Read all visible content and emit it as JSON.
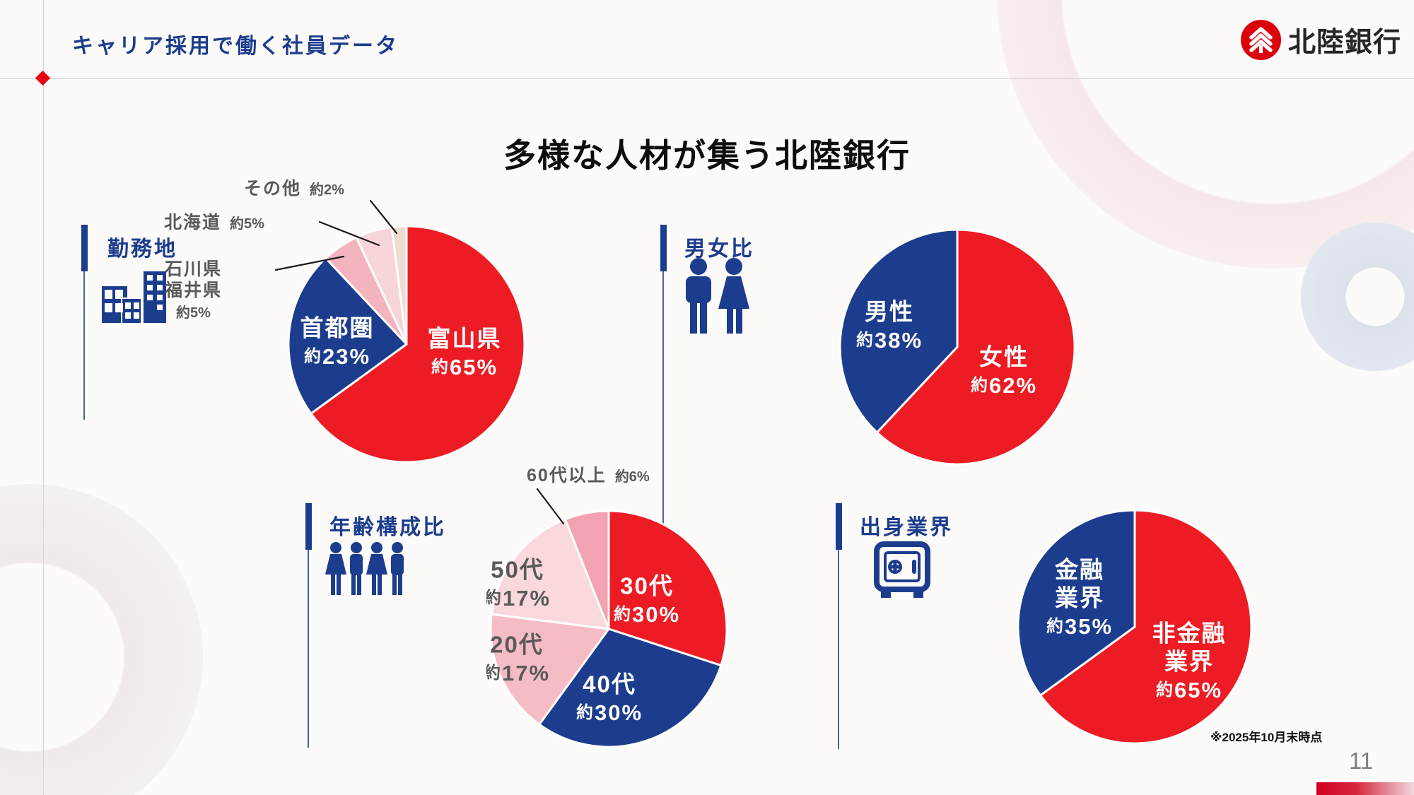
{
  "header": {
    "title": "キャリア採用で働く社員データ",
    "logo_text": "北陸銀行"
  },
  "main_title": "多様な人材が集う北陸銀行",
  "footnote": "※2025年10月末時点",
  "page_number": "11",
  "colors": {
    "brand_red": "#ed1c24",
    "brand_navy": "#1c3d8e",
    "logo_red": "#dc000c",
    "label_gray": "#5a5a5a",
    "pink_medium": "#f4b4be",
    "pink_light": "#f8d5d9",
    "pink_beige": "#efdcd2",
    "pink_dark": "#f2a2b0"
  },
  "chart_data": [
    {
      "id": "workplace",
      "type": "pie",
      "title": "勤務地",
      "icon": "buildings-icon",
      "slices": [
        {
          "label": "富山県",
          "value": 65,
          "value_label": "約65%",
          "color": "#ed1c24",
          "text_color": "#ffffff",
          "placement": "inside"
        },
        {
          "label": "首都圏",
          "value": 23,
          "value_label": "約23%",
          "color": "#1c3d8e",
          "text_color": "#ffffff",
          "placement": "inside"
        },
        {
          "label": "石川県福井県",
          "label_lines": [
            "石川県",
            "福井県"
          ],
          "value": 5,
          "value_label": "約5%",
          "color": "#f4b4be",
          "placement": "outside"
        },
        {
          "label": "北海道",
          "value": 5,
          "value_label": "約5%",
          "color": "#f8d5d9",
          "placement": "outside"
        },
        {
          "label": "その他",
          "value": 2,
          "value_label": "約2%",
          "color": "#efdcd2",
          "placement": "outside"
        }
      ]
    },
    {
      "id": "gender",
      "type": "pie",
      "title": "男女比",
      "icon": "couple-icon",
      "slices": [
        {
          "label": "女性",
          "value": 62,
          "value_label": "約62%",
          "color": "#ed1c24",
          "text_color": "#ffffff",
          "placement": "inside"
        },
        {
          "label": "男性",
          "value": 38,
          "value_label": "約38%",
          "color": "#1c3d8e",
          "text_color": "#ffffff",
          "placement": "inside"
        }
      ]
    },
    {
      "id": "age",
      "type": "pie",
      "title": "年齢構成比",
      "icon": "people-row-icon",
      "slices": [
        {
          "label": "30代",
          "value": 30,
          "value_label": "約30%",
          "color": "#ed1c24",
          "text_color": "#ffffff",
          "placement": "inside"
        },
        {
          "label": "40代",
          "value": 30,
          "value_label": "約30%",
          "color": "#1c3d8e",
          "text_color": "#ffffff",
          "placement": "inside"
        },
        {
          "label": "20代",
          "value": 17,
          "value_label": "約17%",
          "color": "#f6bcc5",
          "text_color": "#5a5a5a",
          "placement": "inside"
        },
        {
          "label": "50代",
          "value": 17,
          "value_label": "約17%",
          "color": "#f9d9dc",
          "text_color": "#5a5a5a",
          "placement": "inside"
        },
        {
          "label": "60代以上",
          "value": 6,
          "value_label": "約6%",
          "color": "#f2a2b0",
          "placement": "outside"
        }
      ]
    },
    {
      "id": "industry",
      "type": "pie",
      "title": "出身業界",
      "icon": "safe-icon",
      "slices": [
        {
          "label": "非金融業界",
          "label_lines": [
            "非金融",
            "業界"
          ],
          "value": 65,
          "value_label": "約65%",
          "color": "#ed1c24",
          "text_color": "#ffffff",
          "placement": "inside"
        },
        {
          "label": "金融業界",
          "label_lines": [
            "金融",
            "業界"
          ],
          "value": 35,
          "value_label": "約35%",
          "color": "#1c3d8e",
          "text_color": "#ffffff",
          "placement": "inside"
        }
      ]
    }
  ]
}
